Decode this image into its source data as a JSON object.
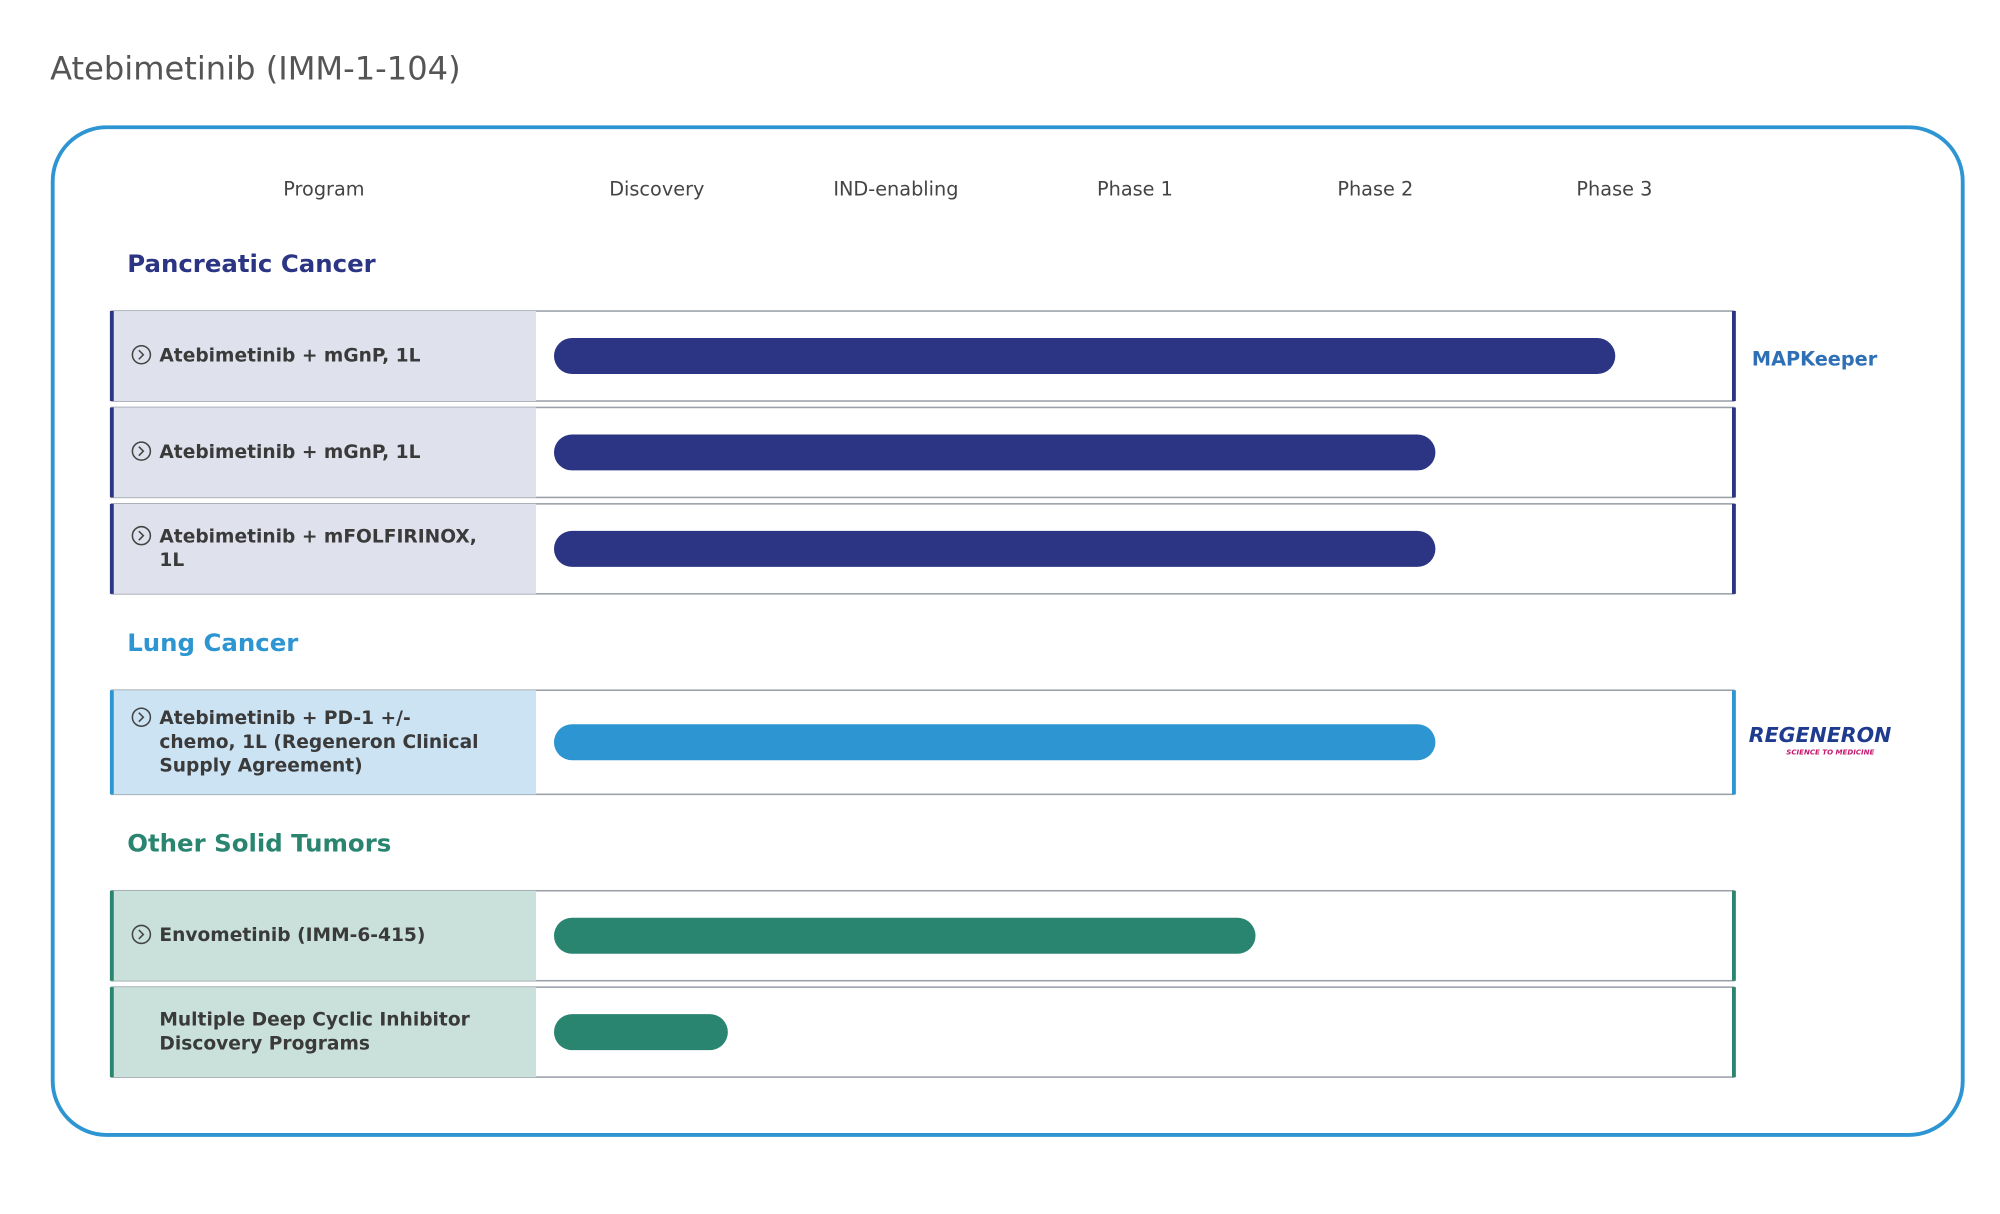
{
  "title": "Atebimetinib (IMM-1-104)",
  "columns": [
    "Program",
    "Discovery",
    "IND-enabling",
    "Phase 1",
    "Phase 2",
    "Phase 3"
  ],
  "sections": [
    {
      "name": "Pancreatic Cancer",
      "color": "#2b3584",
      "fill": "#dfe1ec",
      "programs": [
        {
          "label": [
            "Atebimetinib + mGnP, 1L"
          ],
          "icon": true,
          "progress": 4.5,
          "partner": {
            "name": "MAPKeeper"
          }
        },
        {
          "label": [
            "Atebimetinib + mGnP, 1L"
          ],
          "icon": true,
          "progress": 3.75
        },
        {
          "label": [
            "Atebimetinib + mFOLFIRINOX,",
            "1L"
          ],
          "icon": true,
          "progress": 3.75
        }
      ]
    },
    {
      "name": "Lung Cancer",
      "color": "#2e95d3",
      "fill": "#cce3f3",
      "programs": [
        {
          "label": [
            "Atebimetinib + PD-1 +/-",
            "chemo, 1L (Regeneron Clinical",
            "Supply Agreement)"
          ],
          "icon": true,
          "progress": 3.75,
          "partner": {
            "name": "REGENERON",
            "tagline": "SCIENCE TO MEDICINE"
          }
        }
      ]
    },
    {
      "name": "Other Solid Tumors",
      "color": "#2a8570",
      "fill": "#c9e1da",
      "programs": [
        {
          "label": [
            "Envometinib (IMM-6-415)"
          ],
          "icon": true,
          "progress": 3.0
        },
        {
          "label": [
            "Multiple Deep Cyclic Inhibitor",
            "Discovery Programs"
          ],
          "icon": false,
          "progress": 0.8
        }
      ]
    }
  ]
}
